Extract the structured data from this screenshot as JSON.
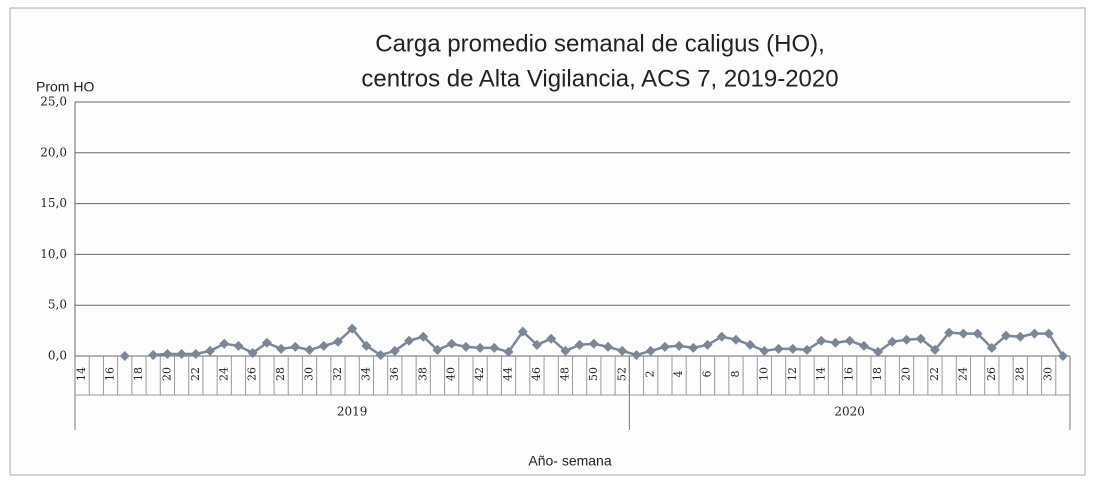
{
  "chart_data": {
    "type": "line",
    "title": [
      "Carga promedio semanal de caligus (HO),",
      "centros de Alta Vigilancia, ACS 7, 2019-2020"
    ],
    "y_label": "Prom HO",
    "x_label": "Año- semana",
    "groups": [
      {
        "name": "2019",
        "categories": [
          "14",
          null,
          "16",
          null,
          "18",
          null,
          "20",
          null,
          "22",
          null,
          "24",
          null,
          "26",
          null,
          "28",
          null,
          "30",
          null,
          "32",
          null,
          "34",
          null,
          "36",
          null,
          "38",
          null,
          "40",
          null,
          "42",
          null,
          "44",
          null,
          "46",
          null,
          "48",
          null,
          "50",
          null,
          "52"
        ]
      },
      {
        "name": "2020",
        "categories": [
          null,
          "2",
          null,
          "4",
          null,
          "6",
          null,
          "8",
          null,
          "10",
          null,
          "12",
          null,
          "14",
          null,
          "16",
          null,
          "18",
          null,
          "20",
          null,
          "22",
          null,
          "24",
          null,
          "26",
          null,
          "28",
          null,
          "30",
          null
        ]
      }
    ],
    "values": [
      null,
      null,
      null,
      0,
      null,
      0.1,
      0.2,
      0.2,
      0.2,
      0.5,
      1.2,
      1.0,
      0.3,
      1.3,
      0.7,
      0.9,
      0.6,
      1.0,
      1.4,
      2.7,
      1.0,
      0.1,
      0.5,
      1.5,
      1.9,
      0.6,
      1.2,
      0.9,
      0.8,
      0.8,
      0.4,
      2.4,
      1.1,
      1.7,
      0.5,
      1.1,
      1.2,
      0.9,
      0.5,
      0.1,
      0.5,
      0.9,
      1.0,
      0.8,
      1.1,
      1.9,
      1.6,
      1.1,
      0.5,
      0.7,
      0.7,
      0.6,
      1.5,
      1.3,
      1.5,
      1.0,
      0.4,
      1.4,
      1.6,
      1.7,
      0.6,
      2.3,
      2.2,
      2.2,
      0.8,
      2.0,
      1.9,
      2.2,
      2.2,
      0.0
    ],
    "color": "#7b8696",
    "ylim": [
      0,
      25
    ],
    "yticks": [
      {
        "value": 0,
        "label": "0,0"
      },
      {
        "value": 5,
        "label": "5,0"
      },
      {
        "value": 10,
        "label": "10,0"
      },
      {
        "value": 15,
        "label": "15,0"
      },
      {
        "value": 20,
        "label": "20,0"
      },
      {
        "value": 25,
        "label": "25,0"
      }
    ],
    "grid": true
  }
}
